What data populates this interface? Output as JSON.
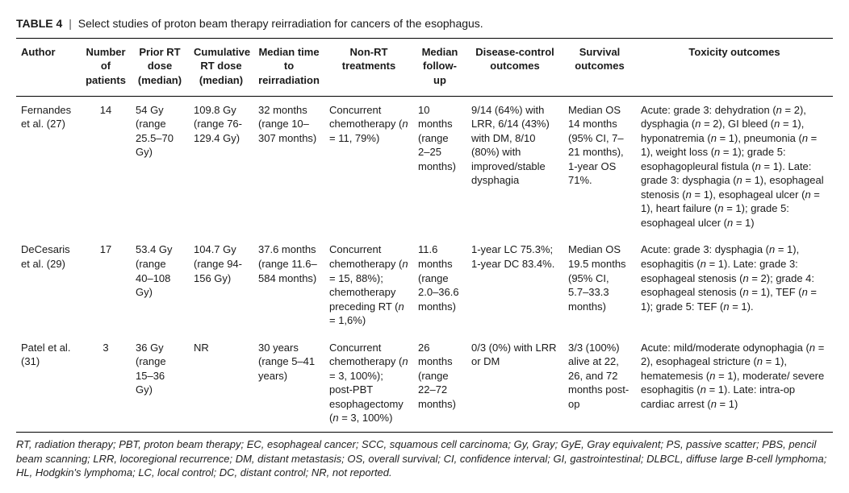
{
  "caption": {
    "label": "TABLE 4",
    "separator": "|",
    "title": "Select studies of proton beam therapy reirradiation for cancers of the esophagus."
  },
  "columns": [
    "Author",
    "Number of patients",
    "Prior RT dose (median)",
    "Cumulative RT dose (median)",
    "Median time to reirradiation",
    "Non-RT treatments",
    "Median follow-up",
    "Disease-control outcomes",
    "Survival outcomes",
    "Toxicity outcomes"
  ],
  "rows": [
    {
      "author_pre": "Fernandes et al. (",
      "author_ref": "27",
      "author_post": ")",
      "num": "14",
      "prior": "54 Gy (range 25.5–70 Gy)",
      "cum": "109.8 Gy (range 76-129.4 Gy)",
      "time": "32 months (range 10–307 months)",
      "nonrt_pre": "Concurrent chemotherapy (",
      "nonrt_n": "n",
      "nonrt_post": " = 11, 79%)",
      "fu": "10 months (range 2–25 months)",
      "dc": "9/14 (64%) with LRR, 6/14 (43%) with DM, 8/10 (80%) with improved/stable dysphagia",
      "surv": "Median OS 14 months (95% CI, 7–21 months), 1-year OS 71%.",
      "tox_html": "Acute: grade 3: dehydration (<span class=\"n-eq\">n</span> = 2), dysphagia (<span class=\"n-eq\">n</span> = 2), GI bleed (<span class=\"n-eq\">n</span> = 1), hyponatremia (<span class=\"n-eq\">n</span> = 1), pneumonia (<span class=\"n-eq\">n</span> = 1), weight loss (<span class=\"n-eq\">n</span> = 1); grade 5: esophagopleural fistula (<span class=\"n-eq\">n</span> = 1). Late: grade 3: dysphagia (<span class=\"n-eq\">n</span> = 1), esophageal stenosis (<span class=\"n-eq\">n</span> = 1), esophageal ulcer (<span class=\"n-eq\">n</span> = 1), heart failure (<span class=\"n-eq\">n</span> = 1); grade 5: esophageal ulcer (<span class=\"n-eq\">n</span> = 1)"
    },
    {
      "author_pre": "DeCesaris et al. (",
      "author_ref": "29",
      "author_post": ")",
      "num": "17",
      "prior": "53.4 Gy (range 40–108 Gy)",
      "cum": "104.7 Gy (range 94-156 Gy)",
      "time": "37.6 months (range 11.6–584 months)",
      "nonrt_html": "Concurrent chemotherapy (<span class=\"n-eq\">n</span> = 15, 88%); chemotherapy preceding RT (<span class=\"n-eq\">n</span> = 1,6%)",
      "fu": "11.6 months (range 2.0–36.6 months)",
      "dc": "1-year LC 75.3%; 1-year DC 83.4%.",
      "surv": "Median OS 19.5 months (95% CI, 5.7–33.3 months)",
      "tox_html": "Acute: grade 3: dysphagia (<span class=\"n-eq\">n</span> = 1), esophagitis (<span class=\"n-eq\">n</span> = 1). Late: grade 3: esophageal stenosis (<span class=\"n-eq\">n</span> = 2); grade 4: esophageal stenosis (<span class=\"n-eq\">n</span> = 1), TEF (<span class=\"n-eq\">n</span> = 1); grade 5: TEF (<span class=\"n-eq\">n</span> = 1)."
    },
    {
      "author_pre": "Patel et al. (",
      "author_ref": "31",
      "author_post": ")",
      "num": "3",
      "prior": "36 Gy (range 15–36 Gy)",
      "cum": "NR",
      "time": "30 years (range 5–41 years)",
      "nonrt_html": "Concurrent chemotherapy (<span class=\"n-eq\">n</span> = 3, 100%); post-PBT esophagectomy (<span class=\"n-eq\">n</span> = 3, 100%)",
      "fu": "26 months (range 22–72 months)",
      "dc": "0/3 (0%) with LRR or DM",
      "surv": "3/3 (100%) alive at 22, 26, and 72 months post-op",
      "tox_html": "Acute: mild/moderate odynophagia (<span class=\"n-eq\">n</span> = 2), esophageal stricture (<span class=\"n-eq\">n</span> = 1), hematemesis (<span class=\"n-eq\">n</span> = 1), moderate/ severe esophagitis (<span class=\"n-eq\">n</span> = 1). Late: intra-op cardiac arrest (<span class=\"n-eq\">n</span> = 1)"
    }
  ],
  "footnote": "RT, radiation therapy; PBT, proton beam therapy; EC, esophageal cancer; SCC, squamous cell carcinoma; Gy, Gray; GyE, Gray equivalent; PS, passive scatter; PBS, pencil beam scanning; LRR, locoregional recurrence; DM, distant metastasis; OS, overall survival; CI, confidence interval; GI, gastrointestinal; DLBCL, diffuse large B-cell lymphoma; HL, Hodgkin's lymphoma; LC, local control; DC, distant control; NR, not reported."
}
